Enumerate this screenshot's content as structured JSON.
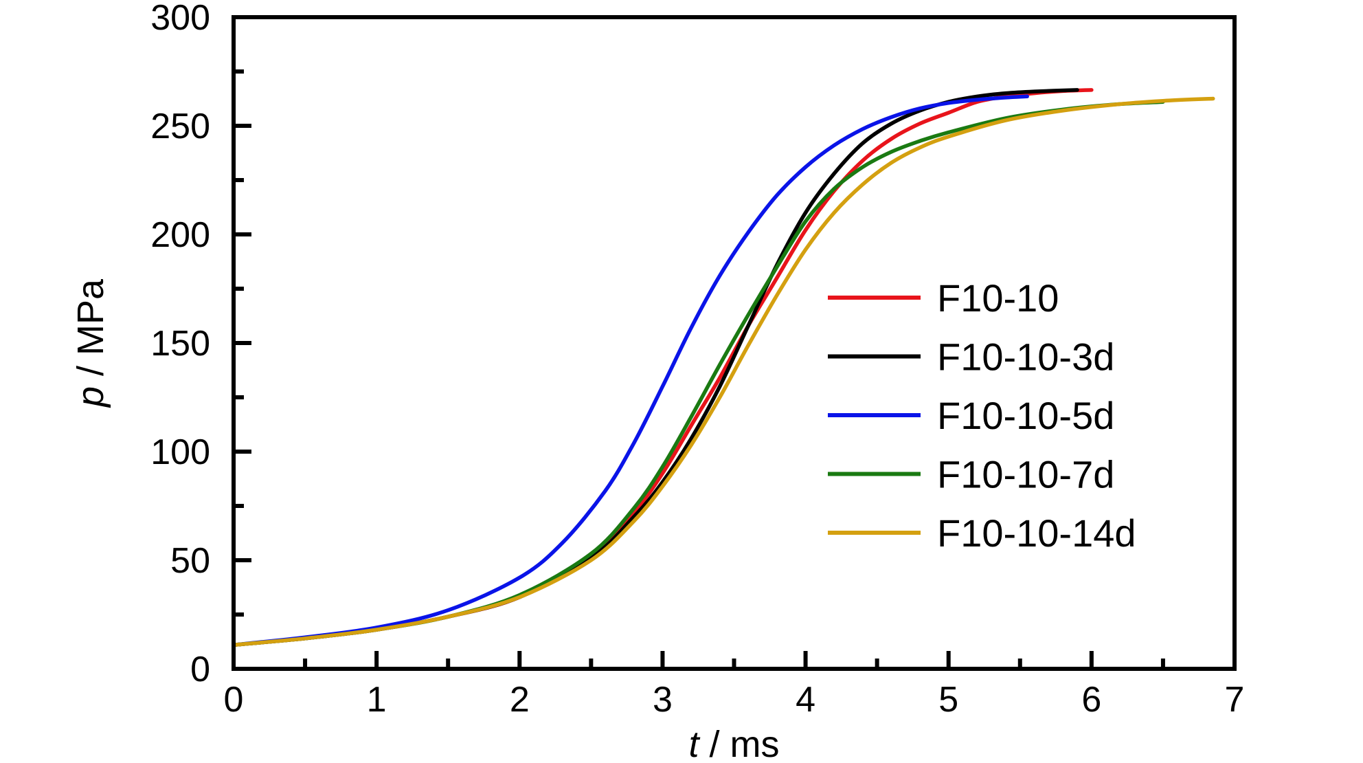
{
  "chart_data": {
    "type": "line",
    "xlabel": {
      "var": "t",
      "unit": " / ms"
    },
    "ylabel": {
      "var": "p",
      "unit": " / MPa"
    },
    "xlim": [
      0,
      7
    ],
    "ylim": [
      0,
      300
    ],
    "x_ticks": [
      "0",
      "1",
      "2",
      "3",
      "4",
      "5",
      "6",
      "7"
    ],
    "y_ticks": [
      "0",
      "50",
      "100",
      "150",
      "200",
      "250",
      "300"
    ],
    "grid": false,
    "legend_position": "right-center",
    "series": [
      {
        "name": "F10-10",
        "color": "#e8141b",
        "points": [
          [
            0,
            11
          ],
          [
            0.5,
            14
          ],
          [
            1,
            18
          ],
          [
            1.5,
            24
          ],
          [
            2,
            33
          ],
          [
            2.5,
            52
          ],
          [
            2.8,
            72
          ],
          [
            3,
            90
          ],
          [
            3.2,
            112
          ],
          [
            3.4,
            134
          ],
          [
            3.6,
            158
          ],
          [
            3.8,
            180
          ],
          [
            4,
            202
          ],
          [
            4.2,
            220
          ],
          [
            4.4,
            234
          ],
          [
            4.6,
            244
          ],
          [
            4.8,
            251
          ],
          [
            5,
            256
          ],
          [
            5.2,
            261
          ],
          [
            5.4,
            263.5
          ],
          [
            5.6,
            265
          ],
          [
            5.8,
            266
          ],
          [
            6,
            266.5
          ]
        ]
      },
      {
        "name": "F10-10-3d",
        "color": "#000000",
        "points": [
          [
            0,
            11
          ],
          [
            0.5,
            14
          ],
          [
            1,
            18
          ],
          [
            1.5,
            24
          ],
          [
            2,
            33
          ],
          [
            2.5,
            51
          ],
          [
            2.8,
            70
          ],
          [
            3,
            86
          ],
          [
            3.2,
            106
          ],
          [
            3.4,
            130
          ],
          [
            3.6,
            158
          ],
          [
            3.8,
            186
          ],
          [
            4,
            210
          ],
          [
            4.2,
            228
          ],
          [
            4.4,
            242
          ],
          [
            4.6,
            251
          ],
          [
            4.8,
            257
          ],
          [
            5,
            261
          ],
          [
            5.2,
            263.5
          ],
          [
            5.4,
            265
          ],
          [
            5.6,
            265.8
          ],
          [
            5.9,
            266.5
          ]
        ]
      },
      {
        "name": "F10-10-5d",
        "color": "#0a14e8",
        "points": [
          [
            0,
            11
          ],
          [
            0.5,
            14.5
          ],
          [
            1,
            19
          ],
          [
            1.5,
            27
          ],
          [
            2,
            42
          ],
          [
            2.3,
            58
          ],
          [
            2.6,
            82
          ],
          [
            2.8,
            104
          ],
          [
            3,
            130
          ],
          [
            3.2,
            157
          ],
          [
            3.4,
            181
          ],
          [
            3.6,
            201
          ],
          [
            3.8,
            218
          ],
          [
            4,
            231
          ],
          [
            4.2,
            241
          ],
          [
            4.4,
            248.5
          ],
          [
            4.6,
            254
          ],
          [
            4.8,
            258
          ],
          [
            5,
            260.5
          ],
          [
            5.2,
            262
          ],
          [
            5.4,
            263
          ],
          [
            5.55,
            263.5
          ]
        ]
      },
      {
        "name": "F10-10-7d",
        "color": "#1a7a12",
        "points": [
          [
            0,
            11
          ],
          [
            0.5,
            14
          ],
          [
            1,
            18
          ],
          [
            1.5,
            24
          ],
          [
            2,
            34
          ],
          [
            2.5,
            53
          ],
          [
            2.8,
            74
          ],
          [
            3,
            93
          ],
          [
            3.2,
            116
          ],
          [
            3.4,
            140
          ],
          [
            3.6,
            163
          ],
          [
            3.8,
            185
          ],
          [
            4,
            206
          ],
          [
            4.2,
            221
          ],
          [
            4.4,
            231
          ],
          [
            4.6,
            238
          ],
          [
            4.8,
            243
          ],
          [
            5,
            247
          ],
          [
            5.4,
            253.5
          ],
          [
            5.8,
            257.5
          ],
          [
            6.2,
            260
          ],
          [
            6.5,
            261
          ]
        ]
      },
      {
        "name": "F10-10-14d",
        "color": "#d4a010",
        "points": [
          [
            0,
            11
          ],
          [
            0.5,
            14
          ],
          [
            1,
            18
          ],
          [
            1.5,
            24
          ],
          [
            2,
            33
          ],
          [
            2.5,
            50
          ],
          [
            2.8,
            68
          ],
          [
            3,
            84
          ],
          [
            3.2,
            103
          ],
          [
            3.4,
            125
          ],
          [
            3.6,
            149
          ],
          [
            3.8,
            172
          ],
          [
            4,
            193
          ],
          [
            4.2,
            210
          ],
          [
            4.4,
            223
          ],
          [
            4.6,
            233
          ],
          [
            4.8,
            240
          ],
          [
            5,
            245
          ],
          [
            5.4,
            252.5
          ],
          [
            5.8,
            257
          ],
          [
            6.2,
            260
          ],
          [
            6.5,
            261.5
          ],
          [
            6.85,
            262.5
          ]
        ]
      }
    ]
  }
}
